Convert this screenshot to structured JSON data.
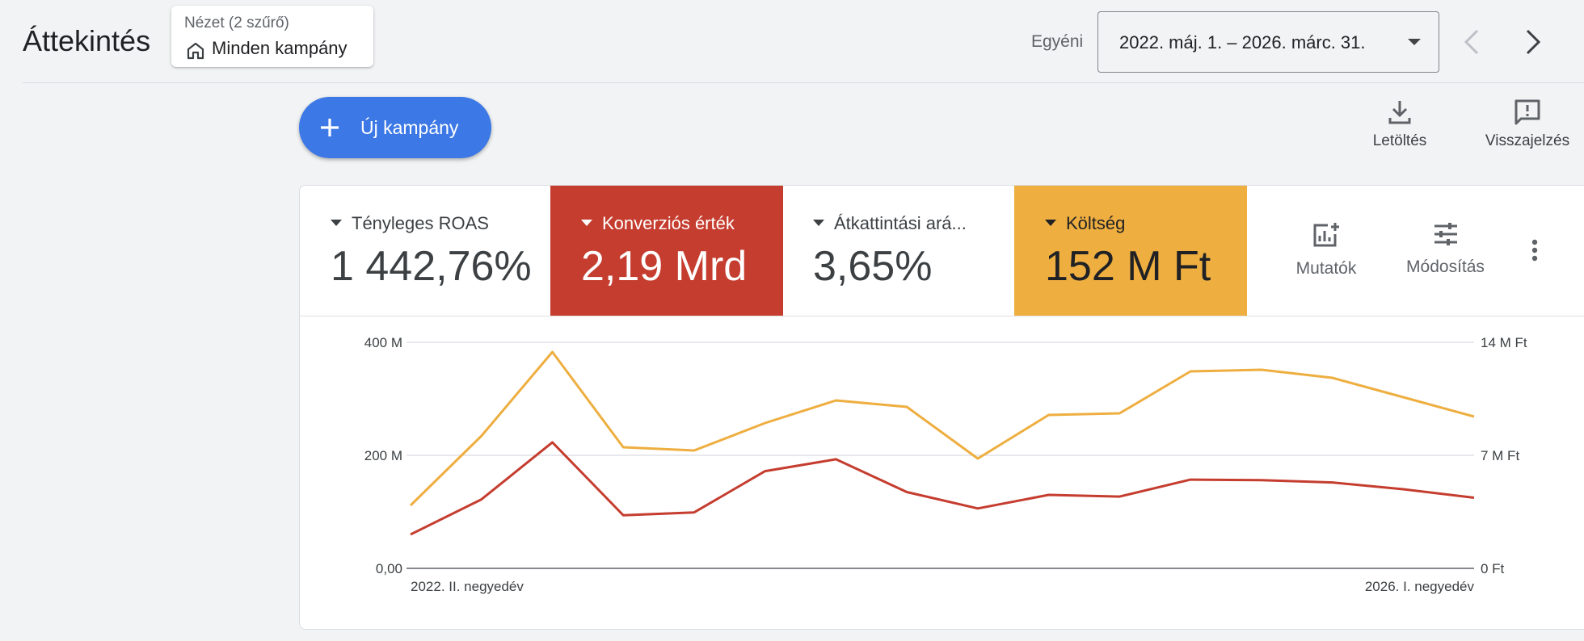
{
  "header": {
    "title": "Áttekintés",
    "view_filter": {
      "caption": "Nézet (2 szűrő)",
      "value": "Minden kampány",
      "icon": "home-icon"
    },
    "date_range": {
      "label": "Egyéni",
      "value": "2022. máj. 1. – 2026. márc. 31."
    },
    "prev_icon": "chevron-left-icon",
    "next_icon": "chevron-right-icon"
  },
  "toolbar": {
    "new_campaign_label": "Új kampány",
    "download_label": "Letöltés",
    "feedback_label": "Visszajelzés"
  },
  "scorecards": [
    {
      "label": "Tényleges ROAS",
      "value": "1 442,76%",
      "color": "#ffffff"
    },
    {
      "label": "Konverziós érték",
      "value": "2,19 Mrd",
      "color": "#c53d2f"
    },
    {
      "label": "Átkattintási ará...",
      "value": "3,65%",
      "color": "#ffffff"
    },
    {
      "label": "Költség",
      "value": "152 M Ft",
      "color": "#eeae40"
    }
  ],
  "chart_tools": {
    "metrics_label": "Mutatók",
    "adjust_label": "Módosítás"
  },
  "chart_data": {
    "type": "line",
    "x_labels": [
      "2022. II. negyedév",
      "2026. I. negyedév"
    ],
    "left_axis": {
      "ticks": [
        "0,00",
        "200 M",
        "400 M"
      ],
      "ylim": [
        0,
        400
      ]
    },
    "right_axis": {
      "ticks": [
        "0 Ft",
        "7 M Ft",
        "14 M Ft"
      ],
      "ylim": [
        0,
        14
      ]
    },
    "grid": true,
    "series": [
      {
        "name": "Konverziós érték",
        "color": "#c53d2f",
        "axis": "left",
        "values": [
          60,
          122,
          223,
          94,
          99,
          172,
          193,
          135,
          106,
          130,
          127,
          157,
          156,
          152,
          140,
          125
        ]
      },
      {
        "name": "Költség",
        "color": "#eeae40",
        "axis": "right",
        "values": [
          3.9,
          8.2,
          13.4,
          7.5,
          7.3,
          9.0,
          10.4,
          10.0,
          6.8,
          9.5,
          9.6,
          12.2,
          12.3,
          11.8,
          10.6,
          9.4
        ]
      }
    ]
  }
}
